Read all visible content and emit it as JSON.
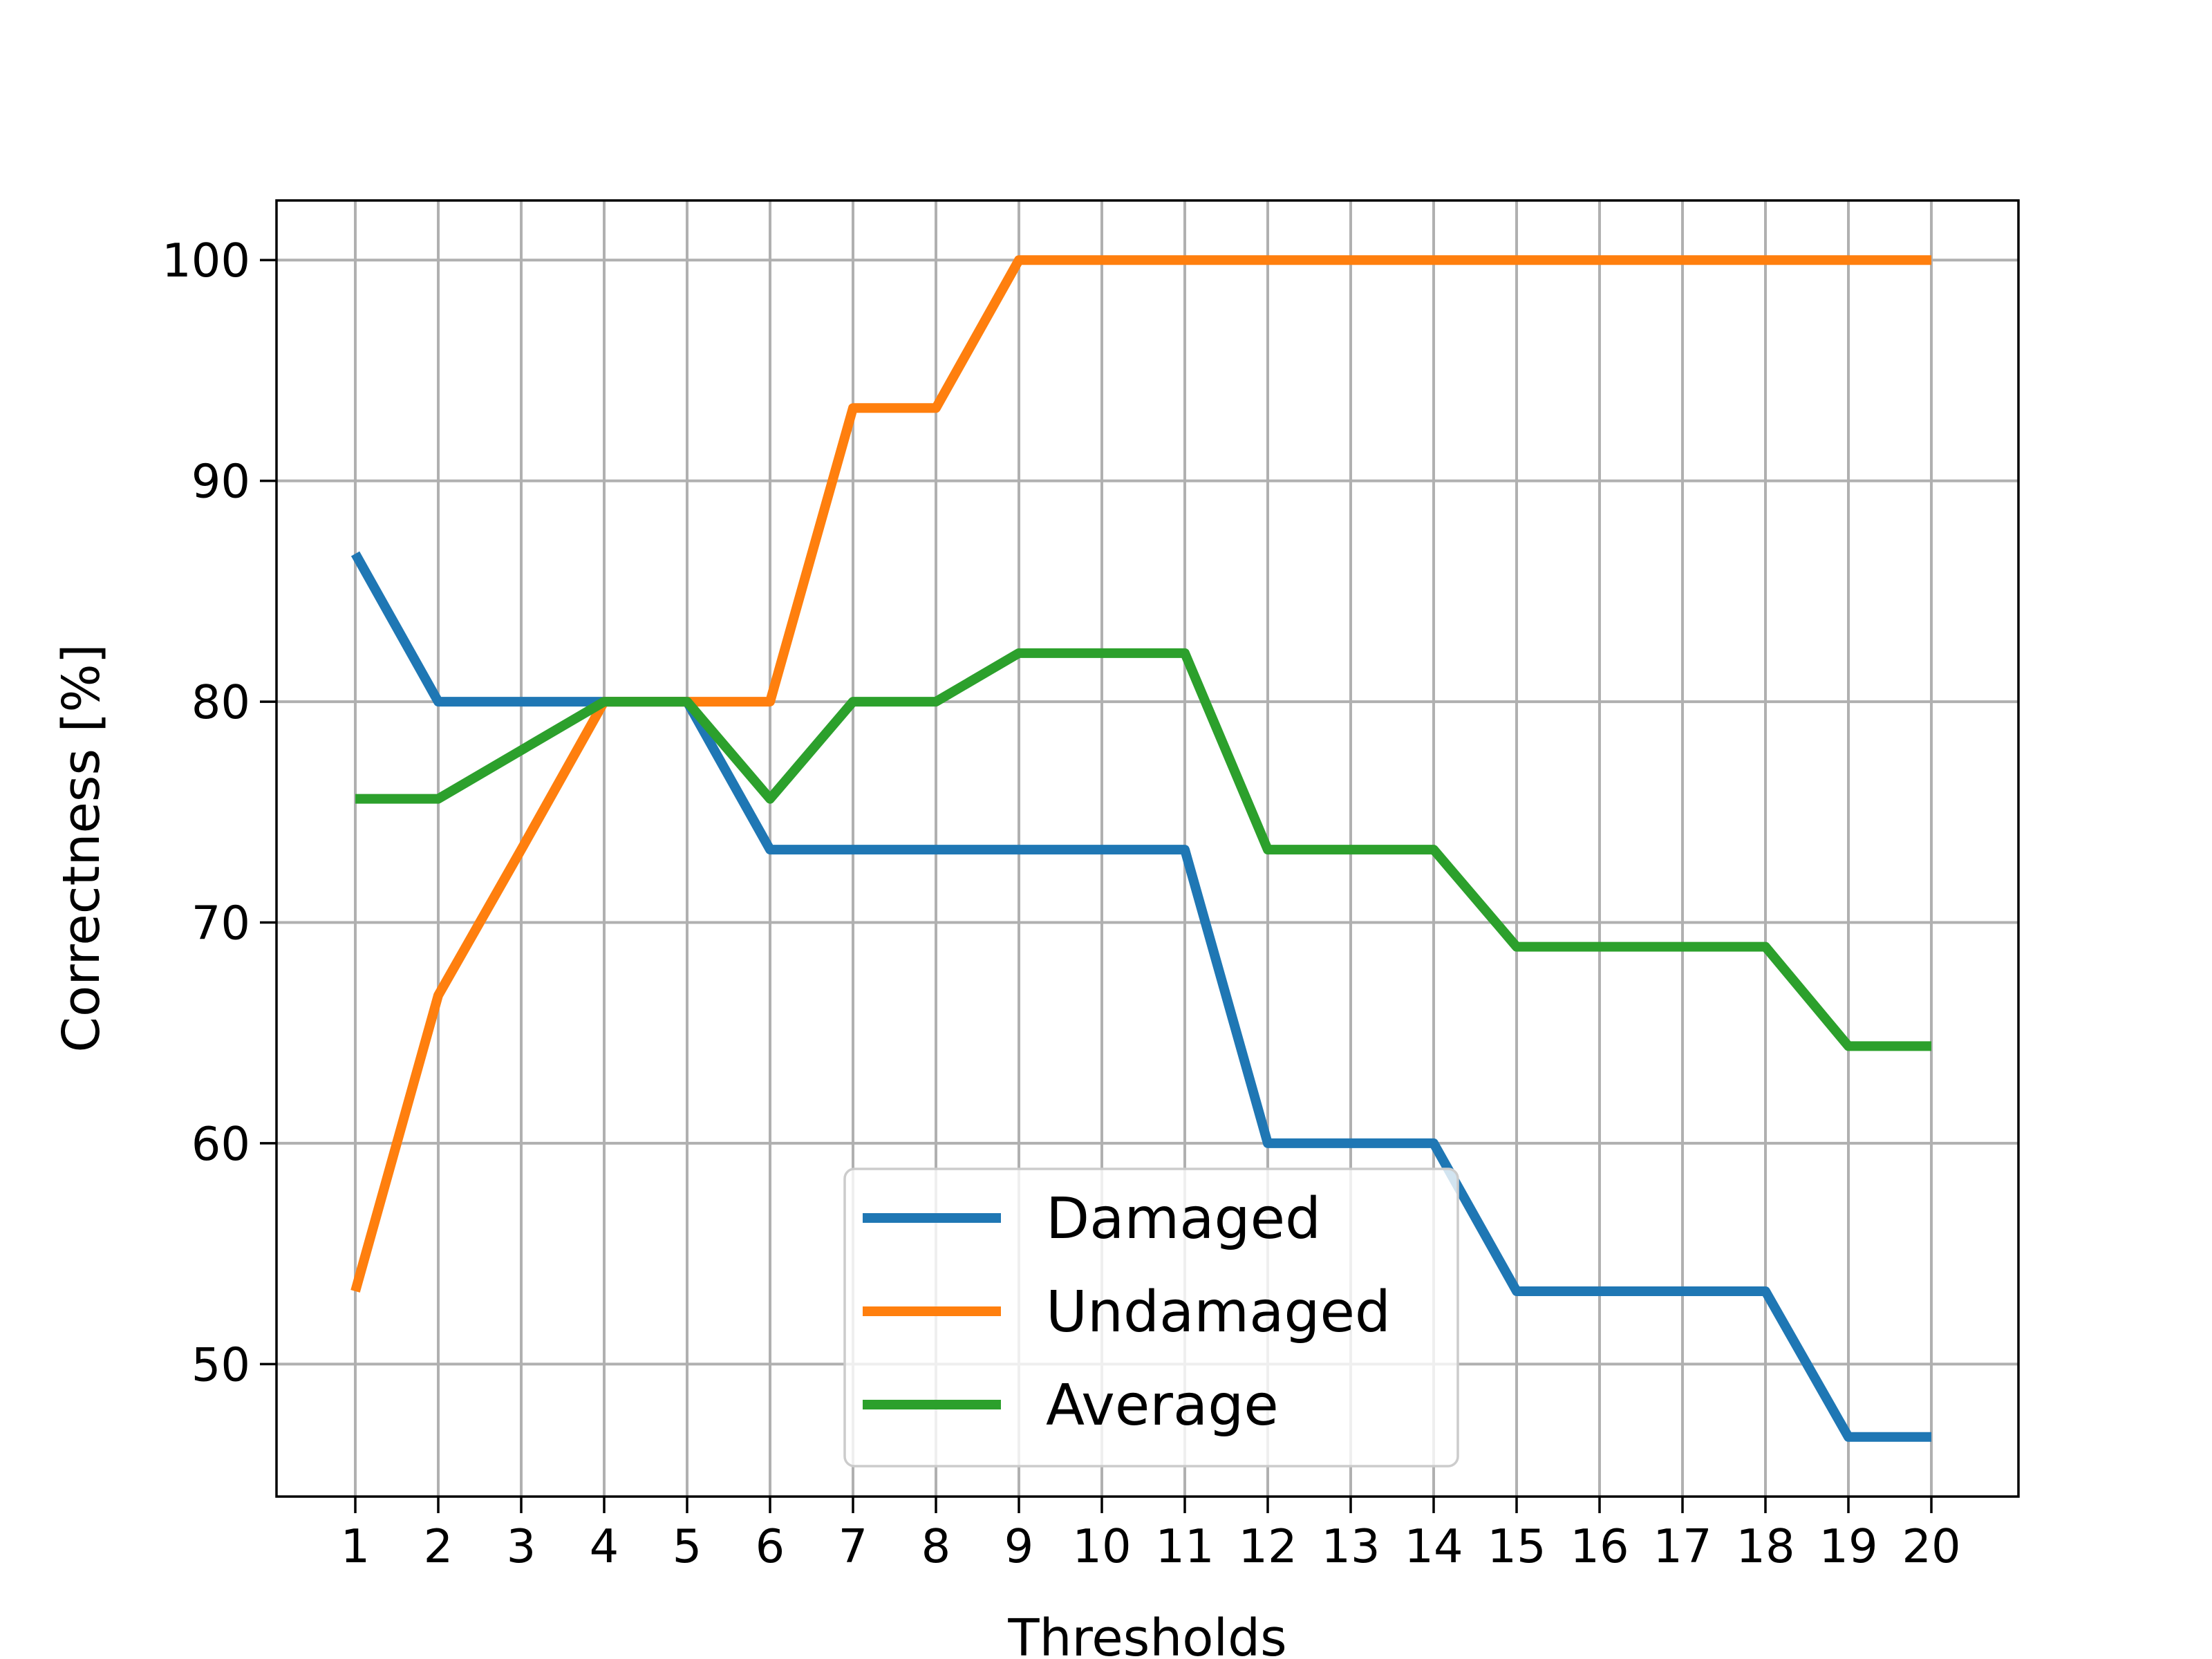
{
  "chart_data": {
    "type": "line",
    "title": "",
    "xlabel": "Thresholds",
    "ylabel": "Correctness [%]",
    "x": [
      1,
      2,
      3,
      4,
      5,
      6,
      7,
      8,
      9,
      10,
      11,
      12,
      13,
      14,
      15,
      16,
      17,
      18,
      19,
      20
    ],
    "x_tick_labels": [
      "1",
      "2",
      "3",
      "4",
      "5",
      "6",
      "7",
      "8",
      "9",
      "10",
      "11",
      "12",
      "13",
      "14",
      "15",
      "16",
      "17",
      "18",
      "19",
      "20"
    ],
    "y_ticks": [
      50,
      60,
      70,
      80,
      90,
      100
    ],
    "y_tick_labels": [
      "50",
      "60",
      "70",
      "80",
      "90",
      "100"
    ],
    "xlim": [
      0.05,
      21.05
    ],
    "ylim": [
      44.0,
      102.7
    ],
    "grid": true,
    "legend_position": "bottom-center",
    "series": [
      {
        "name": "Damaged",
        "color": "#1f77b4",
        "values": [
          86.7,
          80.0,
          80.0,
          80.0,
          80.0,
          73.3,
          73.3,
          73.3,
          73.3,
          73.3,
          73.3,
          60.0,
          60.0,
          60.0,
          53.3,
          53.3,
          53.3,
          53.3,
          46.7,
          46.7
        ]
      },
      {
        "name": "Undamaged",
        "color": "#ff7f0e",
        "values": [
          53.3,
          66.7,
          73.3,
          80.0,
          80.0,
          80.0,
          93.3,
          93.3,
          100.0,
          100.0,
          100.0,
          100.0,
          100.0,
          100.0,
          100.0,
          100.0,
          100.0,
          100.0,
          100.0,
          100.0
        ]
      },
      {
        "name": "Average",
        "color": "#2ca02c",
        "values": [
          75.6,
          75.6,
          77.8,
          80.0,
          80.0,
          75.6,
          80.0,
          80.0,
          82.2,
          82.2,
          82.2,
          73.3,
          73.3,
          73.3,
          68.9,
          68.9,
          68.9,
          68.9,
          64.4,
          64.4
        ]
      }
    ]
  }
}
